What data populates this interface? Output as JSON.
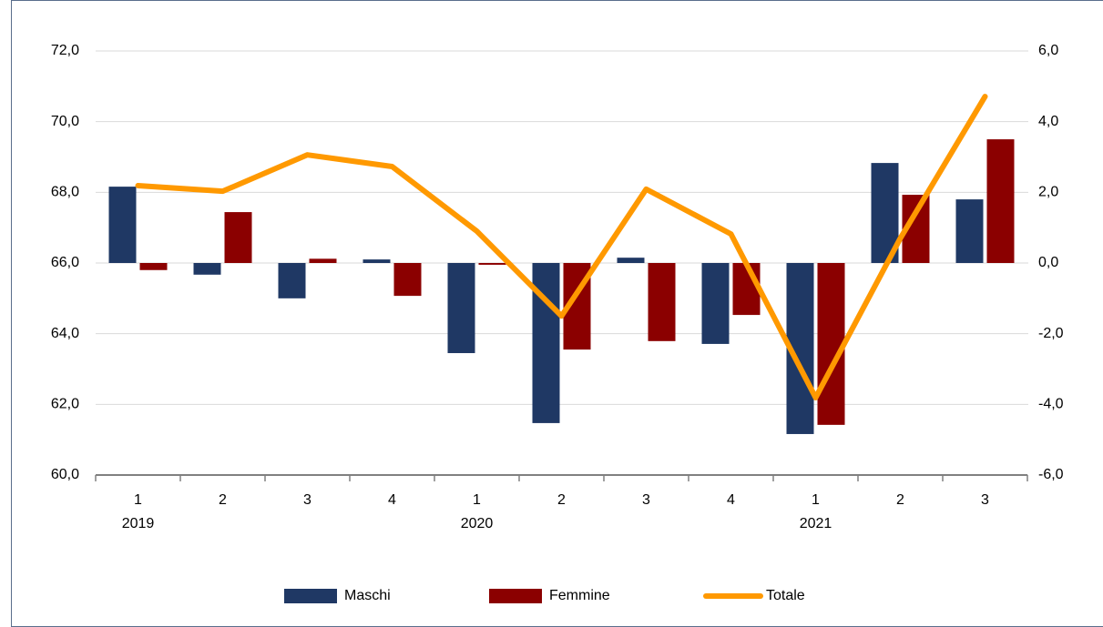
{
  "chart_data": {
    "type": "combo",
    "categories": [
      "1",
      "2",
      "3",
      "4",
      "1",
      "2",
      "3",
      "4",
      "1",
      "2",
      "3"
    ],
    "category_groups": [
      "2019",
      null,
      null,
      null,
      "2020",
      null,
      null,
      null,
      "2021",
      null,
      null
    ],
    "series": [
      {
        "name": "Maschi",
        "type": "bar",
        "axis": "y2",
        "color": "#1f3864",
        "values": [
          2.16,
          -0.33,
          -1.0,
          0.1,
          -2.55,
          -4.53,
          0.15,
          -2.29,
          -4.84,
          2.83,
          1.8
        ]
      },
      {
        "name": "Femmine",
        "type": "bar",
        "axis": "y2",
        "color": "#8b0000",
        "values": [
          -0.2,
          1.44,
          0.12,
          -0.93,
          -0.05,
          -2.45,
          -2.21,
          -1.47,
          -4.58,
          1.93,
          3.5
        ]
      },
      {
        "name": "Totale",
        "type": "line",
        "axis": "y",
        "color": "#ff9900",
        "values": [
          68.19,
          68.03,
          69.06,
          68.73,
          66.9,
          64.5,
          68.09,
          66.82,
          62.19,
          66.7,
          70.71
        ]
      }
    ],
    "ylim": [
      60,
      72
    ],
    "yticks": [
      {
        "value": 60,
        "label": "60,0"
      },
      {
        "value": 62,
        "label": "62,0"
      },
      {
        "value": 64,
        "label": "64,0"
      },
      {
        "value": 66,
        "label": "66,0"
      },
      {
        "value": 68,
        "label": "68,0"
      },
      {
        "value": 70,
        "label": "70,0"
      },
      {
        "value": 72,
        "label": "72,0"
      }
    ],
    "y2lim": [
      -6,
      6
    ],
    "y2ticks": [
      {
        "value": -6,
        "label": "-6,0"
      },
      {
        "value": -4,
        "label": "-4,0"
      },
      {
        "value": -2,
        "label": "-2,0"
      },
      {
        "value": 0,
        "label": "0,0"
      },
      {
        "value": 2,
        "label": "2,0"
      },
      {
        "value": 4,
        "label": "4,0"
      },
      {
        "value": 6,
        "label": "6,0"
      }
    ],
    "grid": true
  }
}
